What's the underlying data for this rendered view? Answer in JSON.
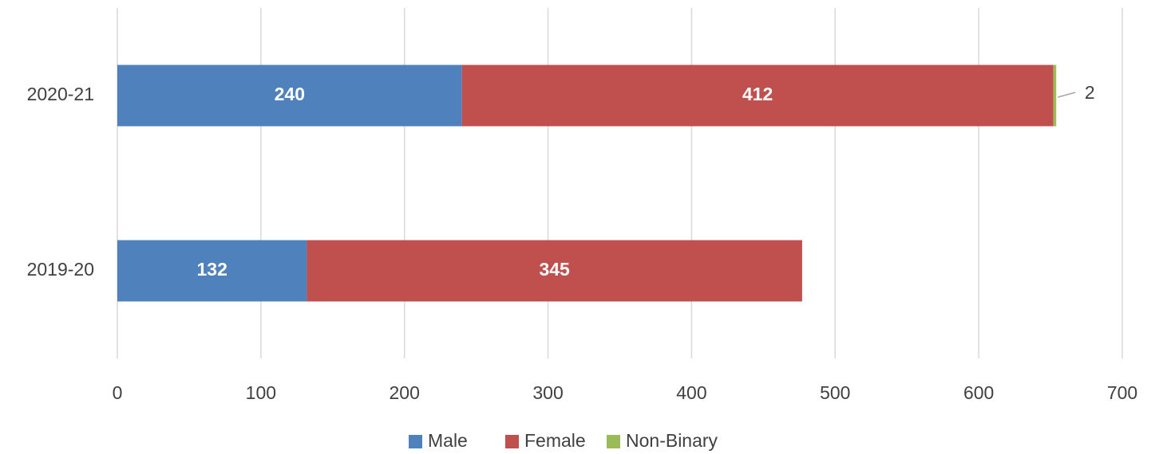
{
  "chart_data": {
    "type": "stacked_bar_horizontal",
    "categories": [
      "2020-21",
      "2019-20"
    ],
    "series": [
      {
        "name": "Male",
        "color": "#4f81bd",
        "values": [
          240,
          132
        ]
      },
      {
        "name": "Female",
        "color": "#c0504d",
        "values": [
          412,
          345
        ]
      },
      {
        "name": "Non-Binary",
        "color": "#9bbb59",
        "values": [
          2,
          null
        ]
      }
    ],
    "xlim": [
      0,
      700
    ],
    "xticks": [
      0,
      100,
      200,
      300,
      400,
      500,
      600,
      700
    ],
    "grid": true,
    "legend": "bottom"
  }
}
